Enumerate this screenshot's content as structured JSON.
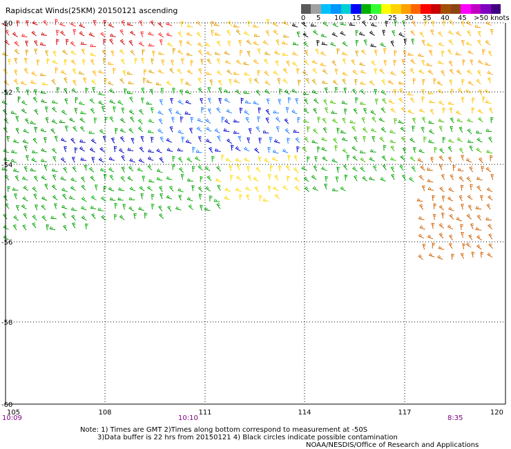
{
  "title": "Rapidscat Winds(25KM) 20150121 ascending",
  "legend": {
    "colors": [
      "#5a5a5a",
      "#a0a0a0",
      "#00c0ff",
      "#0096ff",
      "#00d0d0",
      "#0000ff",
      "#00b000",
      "#32ff32",
      "#ffff00",
      "#ffd200",
      "#ffa000",
      "#ff6400",
      "#ff0000",
      "#c80000",
      "#a05000",
      "#8b4513",
      "#ff00ff",
      "#c000c0",
      "#8000c0",
      "#400080"
    ],
    "labels": [
      "0",
      "5",
      "10",
      "15",
      "20",
      "25",
      "30",
      "35",
      "40",
      "45",
      ">50 knots"
    ]
  },
  "map": {
    "lon_ticks": [
      "105",
      "108",
      "111",
      "114",
      "117",
      "120"
    ],
    "lat_ticks": [
      "-50",
      "-52",
      "-54",
      "-56",
      "-58",
      "-60"
    ],
    "times": [
      "10:09",
      "10:10",
      "8:35"
    ]
  },
  "notes": {
    "line1": "Note: 1) Times are GMT 2)Times along bottom correspond to measurement at -50S",
    "line2": "3)Data buffer is 22 hrs from 20150121 4) Black circles indicate possible contamination",
    "line3": "NOAA/NESDIS/Office of Research and Applications"
  }
}
